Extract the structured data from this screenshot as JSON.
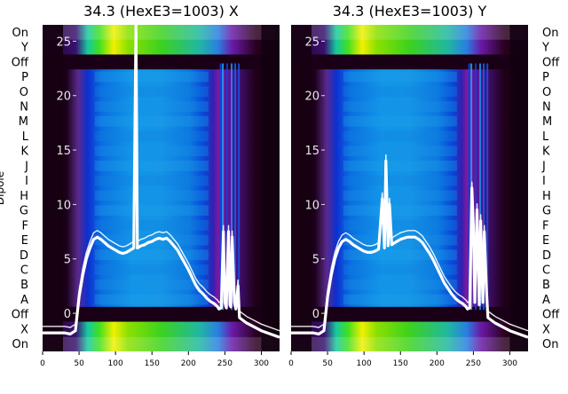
{
  "chart_data": [
    {
      "type": "heatmap",
      "title": "34.3 (HexE3=1003) X",
      "ylabel": "Dipole",
      "x_ticks": [
        0,
        50,
        100,
        150,
        200,
        250,
        300
      ],
      "xlim": [
        0,
        325
      ],
      "y_ticks_left": [
        "On",
        "Y",
        "Off",
        "P",
        "O",
        "N",
        "M",
        "L",
        "K",
        "J",
        "I",
        "H",
        "G",
        "F",
        "E",
        "D",
        "C",
        "B",
        "A",
        "Off",
        "X",
        "On"
      ],
      "overlay_y_ticks": [
        0,
        5,
        10,
        15,
        20,
        25
      ],
      "overlay_ylim": [
        -3.5,
        26.5
      ],
      "overlay_series": {
        "x": [
          0,
          30,
          38,
          45,
          50,
          55,
          60,
          65,
          70,
          75,
          80,
          85,
          90,
          95,
          100,
          105,
          110,
          115,
          120,
          125,
          128,
          130,
          135,
          140,
          145,
          150,
          155,
          160,
          165,
          170,
          175,
          180,
          185,
          190,
          195,
          200,
          205,
          210,
          215,
          220,
          225,
          230,
          235,
          240,
          242,
          245,
          248,
          250,
          252,
          255,
          257,
          258,
          260,
          263,
          265,
          268,
          270,
          280,
          300,
          325
        ],
        "y": [
          -1.8,
          -1.8,
          -1.9,
          -1.6,
          1.5,
          3.5,
          5.0,
          6.0,
          6.8,
          7.0,
          6.8,
          6.5,
          6.2,
          6.0,
          5.8,
          5.6,
          5.5,
          5.6,
          5.8,
          6.0,
          26.5,
          6.0,
          6.2,
          6.3,
          6.5,
          6.6,
          6.8,
          6.9,
          6.8,
          6.9,
          6.6,
          6.2,
          5.8,
          5.2,
          4.6,
          4.0,
          3.3,
          2.6,
          2.1,
          1.8,
          1.4,
          1.1,
          0.9,
          0.6,
          0.4,
          0.5,
          7.5,
          1.0,
          0.5,
          7.5,
          0.8,
          0.6,
          7.0,
          1.0,
          0.4,
          2.5,
          -0.4,
          -0.9,
          -1.6,
          -2.2
        ]
      }
    },
    {
      "type": "heatmap",
      "title": "34.3 (HexE3=1003) Y",
      "x_ticks": [
        0,
        50,
        100,
        150,
        200,
        250,
        300
      ],
      "xlim": [
        0,
        325
      ],
      "y_ticks_right": [
        "On",
        "Y",
        "Off",
        "P",
        "O",
        "N",
        "M",
        "L",
        "K",
        "J",
        "I",
        "H",
        "G",
        "F",
        "E",
        "D",
        "C",
        "B",
        "A",
        "Off",
        "X",
        "On"
      ],
      "overlay_y_ticks": [
        0,
        5,
        10,
        15,
        20,
        25
      ],
      "overlay_ylim": [
        -3.5,
        26.5
      ],
      "overlay_series": {
        "x": [
          0,
          30,
          38,
          45,
          50,
          55,
          60,
          65,
          70,
          75,
          80,
          85,
          90,
          95,
          100,
          105,
          110,
          115,
          120,
          125,
          128,
          130,
          133,
          135,
          138,
          140,
          145,
          150,
          155,
          160,
          165,
          170,
          175,
          180,
          185,
          190,
          195,
          200,
          205,
          210,
          215,
          220,
          225,
          230,
          235,
          240,
          242,
          245,
          248,
          250,
          252,
          255,
          257,
          258,
          260,
          263,
          265,
          268,
          270,
          280,
          300,
          325
        ],
        "y": [
          -1.8,
          -1.8,
          -1.9,
          -1.6,
          1.5,
          3.5,
          5.0,
          6.0,
          6.6,
          6.8,
          6.6,
          6.3,
          6.1,
          5.9,
          5.7,
          5.6,
          5.6,
          5.7,
          5.9,
          10.5,
          6.0,
          14.0,
          6.2,
          10.0,
          6.3,
          6.4,
          6.6,
          6.8,
          6.9,
          7.0,
          7.0,
          7.0,
          6.8,
          6.5,
          6.0,
          5.5,
          4.9,
          4.2,
          3.5,
          2.8,
          2.3,
          1.8,
          1.4,
          1.1,
          0.9,
          0.6,
          0.4,
          0.5,
          11.5,
          8.0,
          1.0,
          9.5,
          4.0,
          0.8,
          8.5,
          1.0,
          7.5,
          2.0,
          -0.4,
          -0.9,
          -1.6,
          -2.2
        ]
      }
    }
  ]
}
